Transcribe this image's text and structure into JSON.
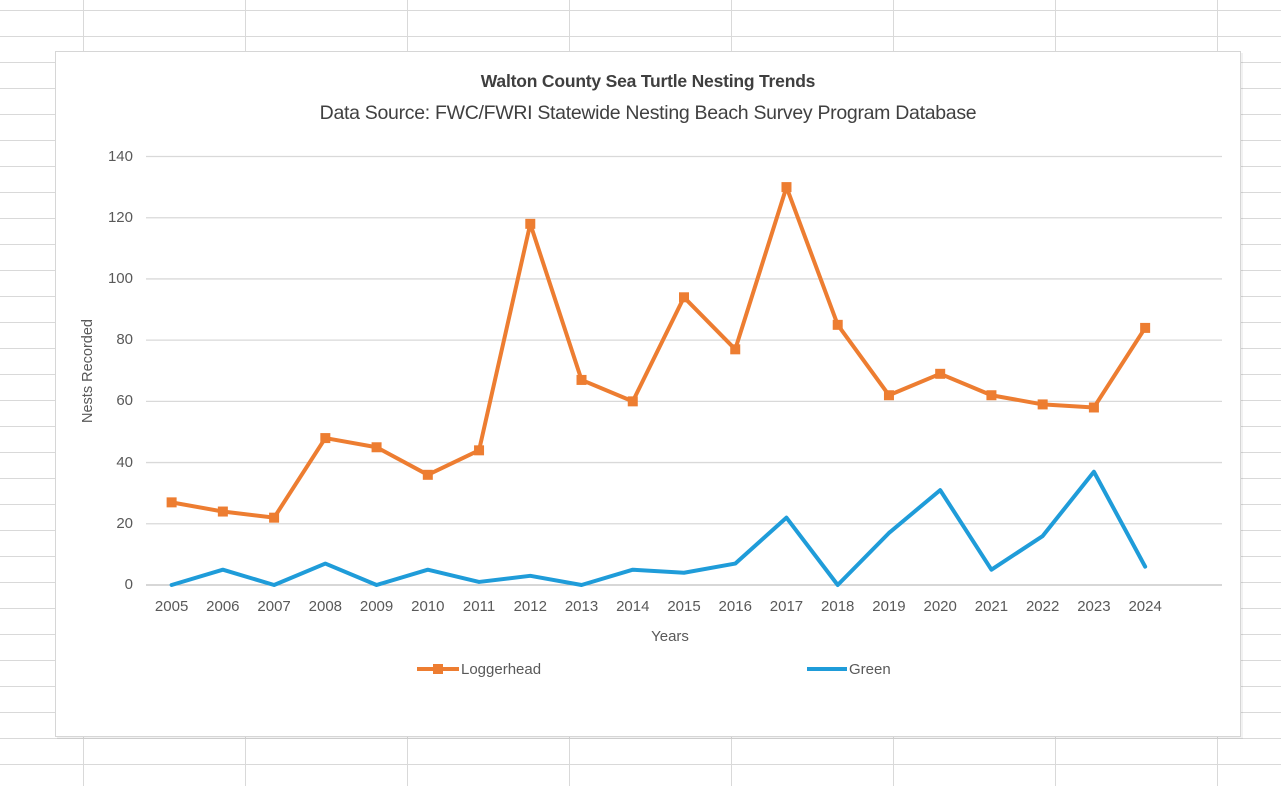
{
  "chart_data": {
    "type": "line",
    "title": "Walton County Sea Turtle Nesting Trends",
    "subtitle": "Data Source: FWC/FWRI Statewide Nesting Beach Survey Program Database",
    "xlabel": "Years",
    "ylabel": "Nests Recorded",
    "ylim": [
      0,
      140
    ],
    "ytick_step": 20,
    "grid": true,
    "legend_position": "bottom",
    "categories": [
      "2005",
      "2006",
      "2007",
      "2008",
      "2009",
      "2010",
      "2011",
      "2012",
      "2013",
      "2014",
      "2015",
      "2016",
      "2017",
      "2018",
      "2019",
      "2020",
      "2021",
      "2022",
      "2023",
      "2024"
    ],
    "series": [
      {
        "name": "Loggerhead",
        "color": "#ED7D31",
        "marker": "square",
        "values": [
          27,
          24,
          22,
          48,
          45,
          36,
          44,
          118,
          67,
          60,
          94,
          77,
          130,
          85,
          62,
          69,
          62,
          59,
          58,
          84
        ]
      },
      {
        "name": "Green",
        "color": "#1F9CD9",
        "marker": "none",
        "values": [
          0,
          5,
          0,
          7,
          0,
          5,
          1,
          3,
          0,
          5,
          4,
          7,
          22,
          0,
          17,
          31,
          5,
          16,
          37,
          6
        ]
      }
    ],
    "axis_colors": {
      "gridline": "#D9D9D9",
      "axis_line": "#BFBFBF",
      "tick_text": "#595959"
    }
  }
}
